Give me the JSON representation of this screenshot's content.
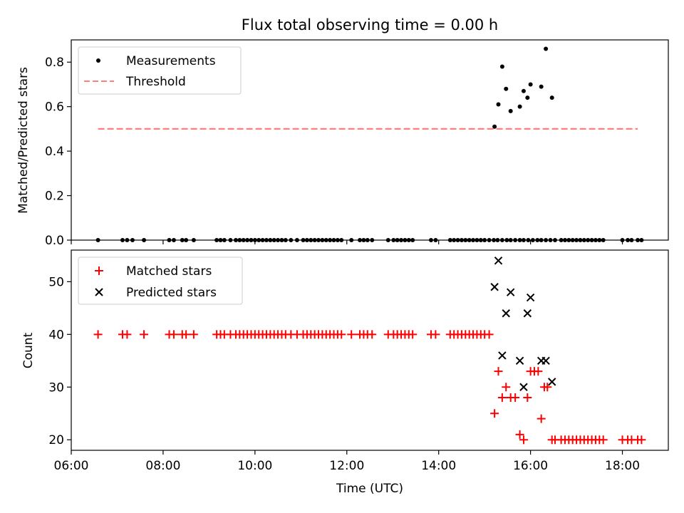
{
  "colors": {
    "measurement": "#000000",
    "threshold": "#ff7f7f",
    "matched": "#ff0000",
    "predicted": "#000000"
  },
  "chart_data": [
    {
      "type": "scatter",
      "title": "Flux total observing time = 0.00 h",
      "xlabel": "",
      "ylabel": "Matched/Predicted stars",
      "xlim": [
        "06:00",
        "19:00"
      ],
      "ylim": [
        0,
        0.9
      ],
      "yticks": [
        "0.0",
        "0.2",
        "0.4",
        "0.6",
        "0.8"
      ],
      "ytick_values": [
        0,
        0.2,
        0.4,
        0.6,
        0.8
      ],
      "legend": {
        "placement": "upper-left",
        "entries": [
          "Measurements",
          "Threshold"
        ]
      },
      "threshold": {
        "name": "Threshold",
        "value": 0.5,
        "x_start": "06:35",
        "x_end": "18:20"
      },
      "series": [
        {
          "name": "Measurements",
          "x": [
            "06:35",
            "07:07",
            "07:13",
            "07:20",
            "07:35",
            "08:08",
            "08:14",
            "08:25",
            "08:30",
            "08:40",
            "09:10",
            "09:15",
            "09:20",
            "09:28",
            "09:35",
            "09:40",
            "09:45",
            "09:50",
            "09:55",
            "10:00",
            "10:05",
            "10:10",
            "10:15",
            "10:20",
            "10:25",
            "10:30",
            "10:35",
            "10:40",
            "10:47",
            "10:55",
            "11:03",
            "11:08",
            "11:13",
            "11:18",
            "11:23",
            "11:28",
            "11:33",
            "11:38",
            "11:43",
            "11:48",
            "11:53",
            "12:06",
            "12:17",
            "12:22",
            "12:27",
            "12:33",
            "12:54",
            "13:01",
            "13:06",
            "13:11",
            "13:16",
            "13:21",
            "13:26",
            "13:50",
            "13:56",
            "14:15",
            "14:20",
            "14:25",
            "14:30",
            "14:35",
            "14:40",
            "14:45",
            "14:50",
            "14:55",
            "15:00",
            "15:06",
            "15:12",
            "15:17",
            "15:23",
            "15:29",
            "15:34",
            "15:40",
            "15:46",
            "15:51",
            "15:57",
            "16:03",
            "16:09",
            "16:14",
            "16:20",
            "16:26",
            "16:32",
            "16:40",
            "16:45",
            "16:50",
            "16:55",
            "17:00",
            "17:05",
            "17:10",
            "17:15",
            "17:20",
            "17:25",
            "17:30",
            "17:35",
            "18:00",
            "18:07",
            "18:12",
            "18:20",
            "18:25"
          ],
          "y": [
            0,
            0,
            0,
            0,
            0,
            0,
            0,
            0,
            0,
            0,
            0,
            0,
            0,
            0,
            0,
            0,
            0,
            0,
            0,
            0,
            0,
            0,
            0,
            0,
            0,
            0,
            0,
            0,
            0,
            0,
            0,
            0,
            0,
            0,
            0,
            0,
            0,
            0,
            0,
            0,
            0,
            0,
            0,
            0,
            0,
            0,
            0,
            0,
            0,
            0,
            0,
            0,
            0,
            0,
            0,
            0,
            0,
            0,
            0,
            0,
            0,
            0,
            0,
            0,
            0,
            0,
            0,
            0,
            0,
            0,
            0,
            0,
            0,
            0,
            0,
            0,
            0,
            0,
            0,
            0,
            0,
            0,
            0,
            0,
            0,
            0,
            0,
            0,
            0,
            0,
            0,
            0,
            0,
            0,
            0,
            0,
            0,
            0
          ]
        },
        {
          "name": "Measurements",
          "x": [
            "15:13",
            "15:18",
            "15:23",
            "15:28",
            "15:34",
            "15:46",
            "15:51",
            "15:56",
            "16:00",
            "16:14",
            "16:20",
            "16:28"
          ],
          "y": [
            0.51,
            0.61,
            0.78,
            0.68,
            0.58,
            0.6,
            0.67,
            0.64,
            0.7,
            0.69,
            0.86,
            0.64
          ]
        }
      ]
    },
    {
      "type": "scatter",
      "title": "",
      "xlabel": "Time (UTC)",
      "ylabel": "Count",
      "xlim": [
        "06:00",
        "19:00"
      ],
      "ylim": [
        18,
        56
      ],
      "xticks": [
        "06:00",
        "08:00",
        "10:00",
        "12:00",
        "14:00",
        "16:00",
        "18:00"
      ],
      "yticks": [
        "20",
        "30",
        "40",
        "50"
      ],
      "ytick_values": [
        20,
        30,
        40,
        50
      ],
      "legend": {
        "placement": "upper-left",
        "entries": [
          "Matched stars",
          "Predicted stars"
        ]
      },
      "series": [
        {
          "name": "Matched stars",
          "marker": "plus",
          "x": [
            "06:35",
            "07:07",
            "07:13",
            "07:35",
            "08:08",
            "08:14",
            "08:25",
            "08:30",
            "08:40",
            "09:10",
            "09:15",
            "09:20",
            "09:28",
            "09:35",
            "09:40",
            "09:45",
            "09:50",
            "09:55",
            "10:00",
            "10:05",
            "10:10",
            "10:15",
            "10:20",
            "10:25",
            "10:30",
            "10:35",
            "10:40",
            "10:47",
            "10:55",
            "11:03",
            "11:08",
            "11:13",
            "11:18",
            "11:23",
            "11:28",
            "11:33",
            "11:38",
            "11:43",
            "11:48",
            "11:53",
            "12:06",
            "12:17",
            "12:22",
            "12:27",
            "12:33",
            "12:54",
            "13:01",
            "13:06",
            "13:11",
            "13:16",
            "13:21",
            "13:26",
            "13:50",
            "13:56",
            "14:15",
            "14:20",
            "14:25",
            "14:30",
            "14:35",
            "14:40",
            "14:45",
            "14:50",
            "14:55",
            "15:00",
            "15:06",
            "15:13",
            "15:18",
            "15:23",
            "15:28",
            "15:34",
            "15:40",
            "15:46",
            "15:51",
            "15:56",
            "16:00",
            "16:05",
            "16:10",
            "16:14",
            "16:18",
            "16:22",
            "16:28",
            "16:32",
            "16:40",
            "16:45",
            "16:50",
            "16:55",
            "17:00",
            "17:05",
            "17:10",
            "17:15",
            "17:20",
            "17:25",
            "17:30",
            "17:35",
            "18:00",
            "18:07",
            "18:12",
            "18:20",
            "18:25"
          ],
          "y": [
            40,
            40,
            40,
            40,
            40,
            40,
            40,
            40,
            40,
            40,
            40,
            40,
            40,
            40,
            40,
            40,
            40,
            40,
            40,
            40,
            40,
            40,
            40,
            40,
            40,
            40,
            40,
            40,
            40,
            40,
            40,
            40,
            40,
            40,
            40,
            40,
            40,
            40,
            40,
            40,
            40,
            40,
            40,
            40,
            40,
            40,
            40,
            40,
            40,
            40,
            40,
            40,
            40,
            40,
            40,
            40,
            40,
            40,
            40,
            40,
            40,
            40,
            40,
            40,
            40,
            25,
            33,
            28,
            30,
            28,
            28,
            21,
            20,
            28,
            33,
            33,
            33,
            24,
            30,
            30,
            20,
            20,
            20,
            20,
            20,
            20,
            20,
            20,
            20,
            20,
            20,
            20,
            20,
            20,
            20,
            20,
            20,
            20,
            20
          ]
        },
        {
          "name": "Predicted stars",
          "marker": "x",
          "x": [
            "15:13",
            "15:18",
            "15:23",
            "15:28",
            "15:34",
            "15:46",
            "15:51",
            "15:56",
            "16:00",
            "16:14",
            "16:20",
            "16:28"
          ],
          "y": [
            49,
            54,
            36,
            44,
            48,
            35,
            30,
            44,
            47,
            35,
            35,
            31
          ]
        }
      ]
    }
  ]
}
